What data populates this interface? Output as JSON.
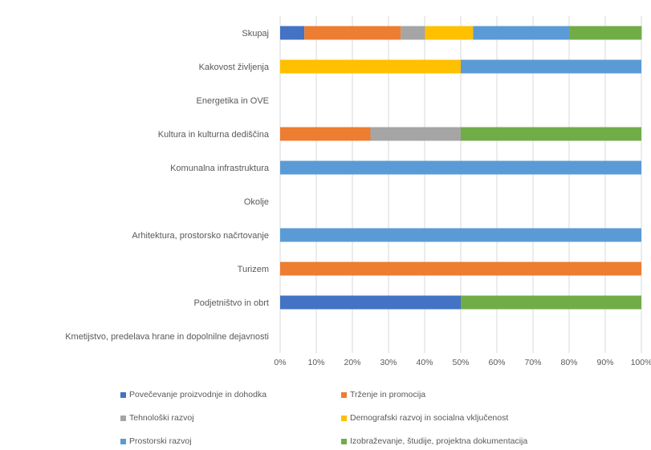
{
  "chart_data": {
    "type": "bar",
    "orientation": "horizontal",
    "stacked": "percent",
    "categories": [
      "Skupaj",
      "Kakovost življenja",
      "Energetika in OVE",
      "Kultura in kulturna dediščina",
      "Komunalna infrastruktura",
      "Okolje",
      "Arhitektura, prostorsko načrtovanje",
      "Turizem",
      "Podjetništvo in obrt",
      "Kmetijstvo, predelava hrane in dopolnilne dejavnosti"
    ],
    "series": [
      {
        "name": "Povečevanje proizvodnje in dohodka",
        "color": "#4472C4",
        "values": [
          6.7,
          0,
          0,
          0,
          0,
          0,
          0,
          0,
          50,
          0
        ]
      },
      {
        "name": "Trženje in promocija",
        "color": "#ED7D31",
        "values": [
          26.7,
          0,
          0,
          25,
          0,
          0,
          0,
          100,
          0,
          0
        ]
      },
      {
        "name": "Tehnološki razvoj",
        "color": "#A5A5A5",
        "values": [
          6.7,
          0,
          0,
          25,
          0,
          0,
          0,
          0,
          0,
          0
        ]
      },
      {
        "name": "Demografski razvoj in socialna vključenost",
        "color": "#FFC000",
        "values": [
          13.3,
          50,
          0,
          0,
          0,
          0,
          0,
          0,
          0,
          0
        ]
      },
      {
        "name": "Prostorski razvoj",
        "color": "#5B9BD5",
        "values": [
          26.7,
          50,
          0,
          0,
          100,
          0,
          100,
          0,
          0,
          0
        ]
      },
      {
        "name": "Izobraževanje, študije, projektna dokumentacija",
        "color": "#70AD47",
        "values": [
          20,
          0,
          0,
          50,
          0,
          0,
          0,
          0,
          50,
          0
        ]
      }
    ],
    "x_ticks": [
      "0%",
      "10%",
      "20%",
      "30%",
      "40%",
      "50%",
      "60%",
      "70%",
      "80%",
      "90%",
      "100%"
    ],
    "xlim": [
      0,
      100
    ],
    "grid": true,
    "legend_position": "bottom"
  }
}
